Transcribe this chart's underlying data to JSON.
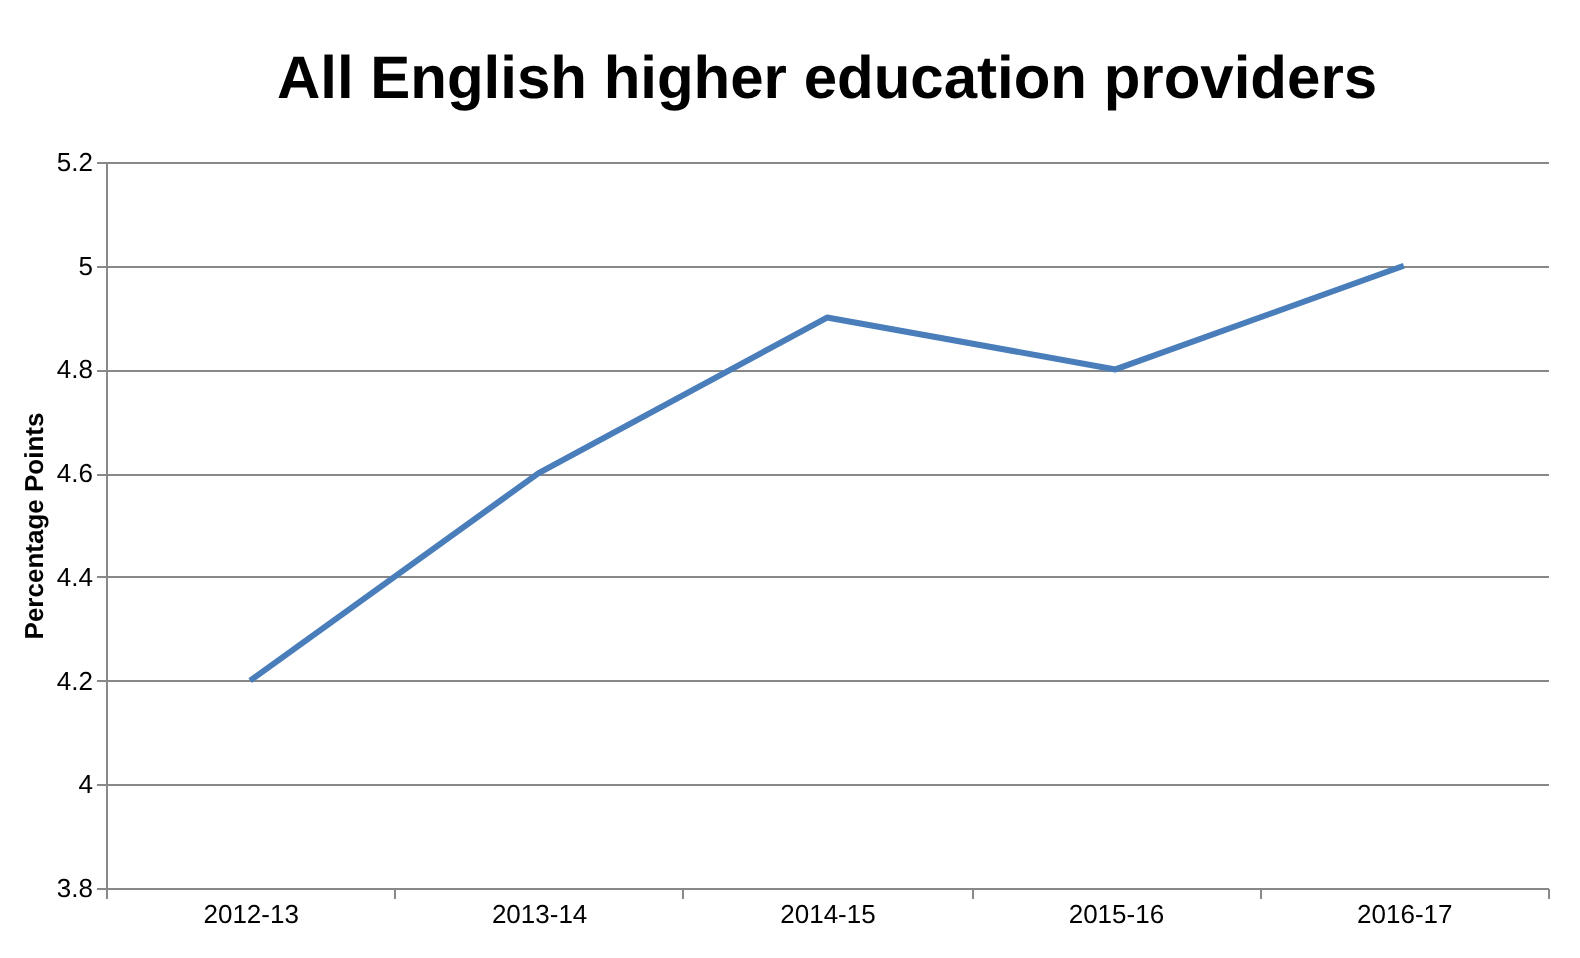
{
  "chart_data": {
    "type": "line",
    "title": "All English higher education providers",
    "ylabel": "Percentage Points",
    "categories": [
      "2012-13",
      "2013-14",
      "2014-15",
      "2015-16",
      "2016-17"
    ],
    "series": [
      {
        "color": "#4a7ebb",
        "values": [
          4.2,
          4.6,
          4.9,
          4.8,
          5.0
        ]
      }
    ],
    "ylim": [
      3.8,
      5.2
    ],
    "yticks": [
      3.8,
      4,
      4.2,
      4.4,
      4.6,
      4.8,
      5,
      5.2
    ],
    "grid": "y",
    "marker": "none",
    "line_style": "solid"
  }
}
